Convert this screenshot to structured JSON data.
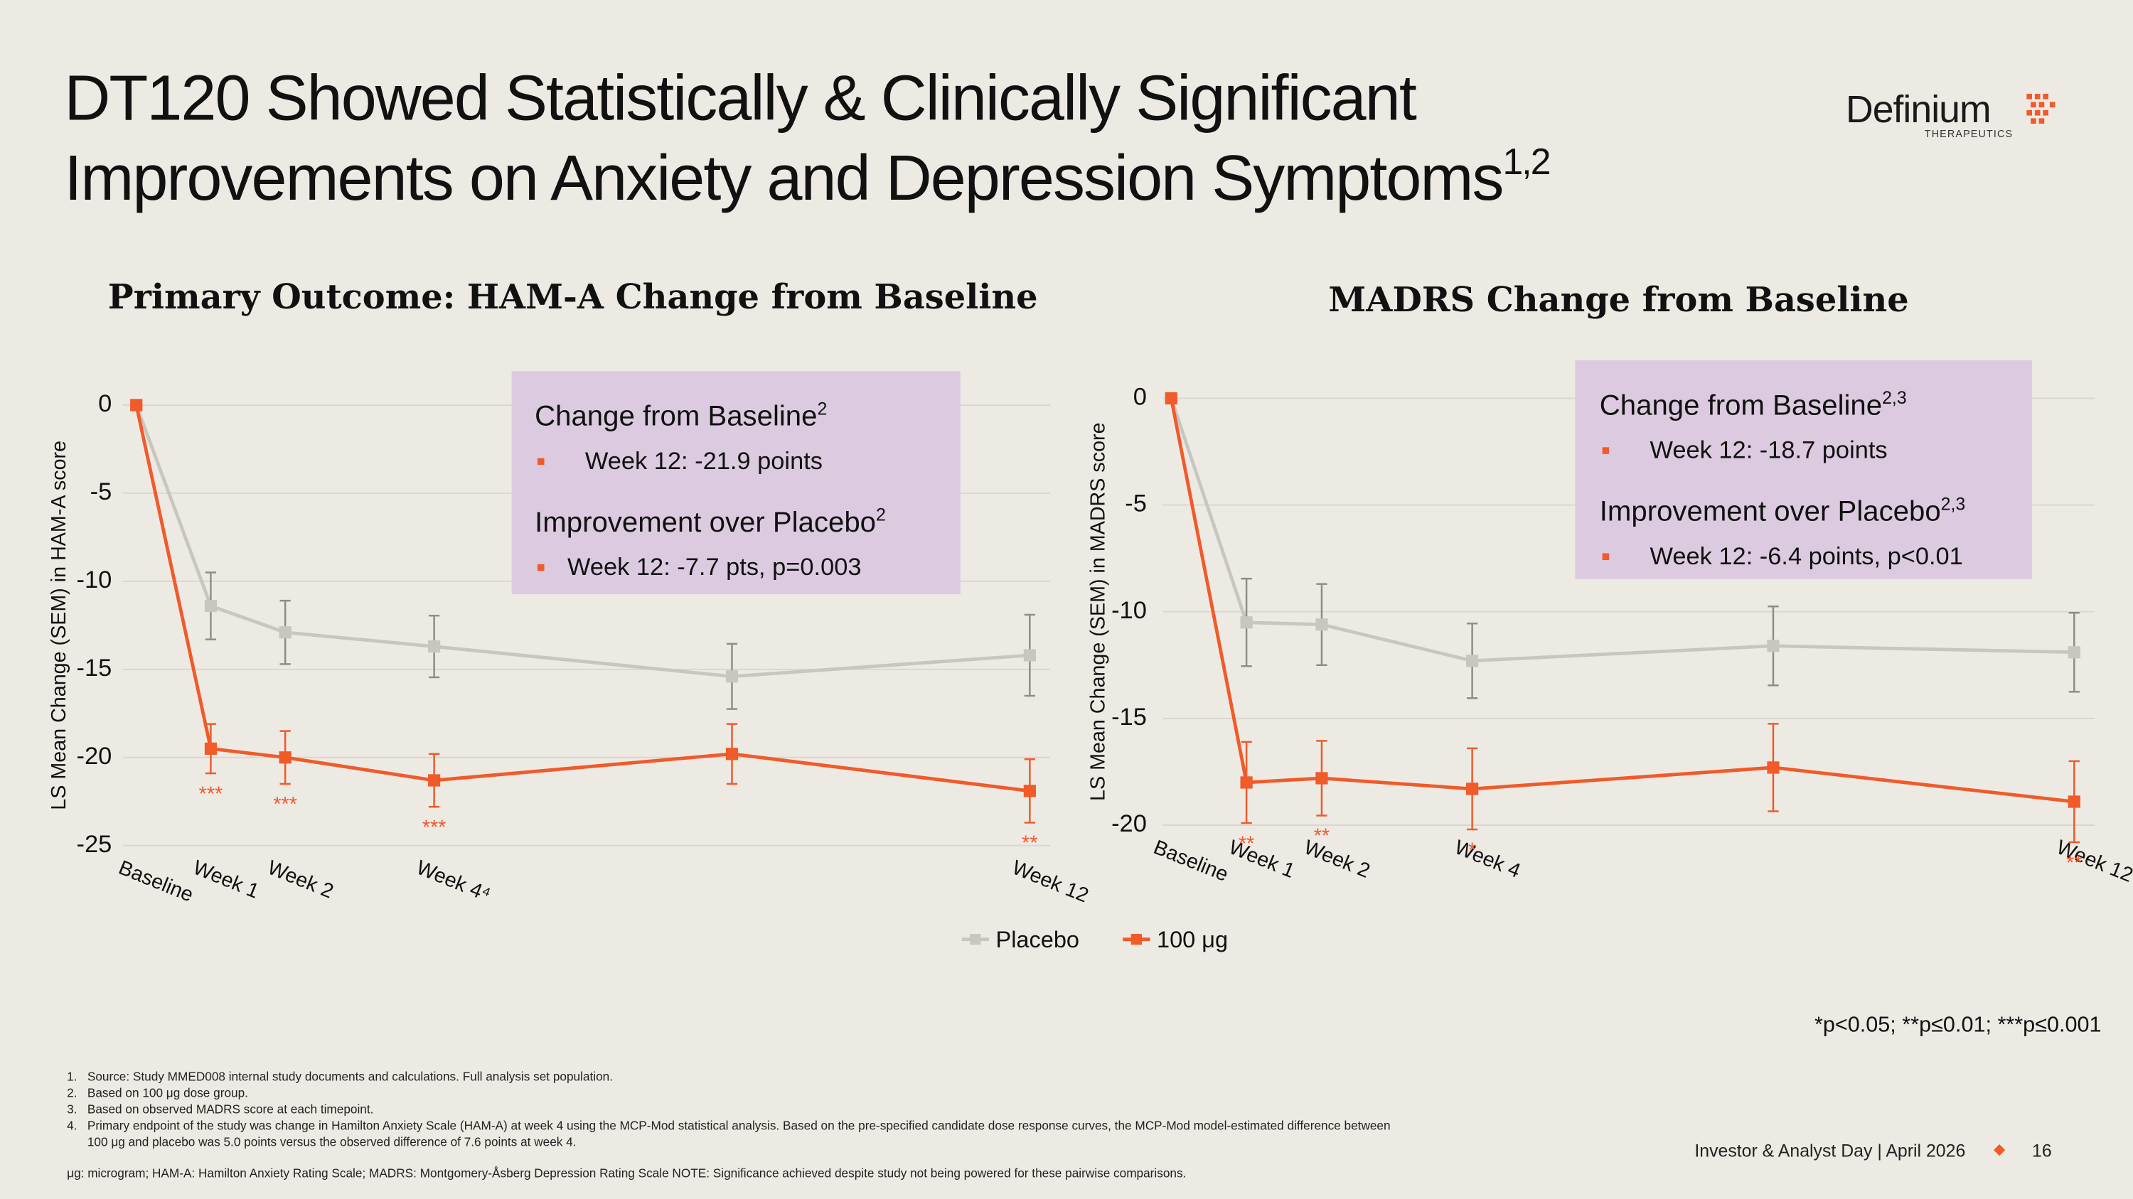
{
  "slide": {
    "title_lines": [
      "DT120 Showed Statistically & Clinically Significant",
      "Improvements on Anxiety and Depression Symptoms"
    ],
    "title_sup": "1,2",
    "logo": {
      "name": "Definium",
      "sub": "THERAPEUTICS"
    },
    "significance_note": "*p<0.05; **p≤0.01; ***p≤0.001",
    "footnotes": [
      {
        "number": "1.",
        "lines": [
          "Source: Study MMED008 internal study documents and calculations. Full analysis set population."
        ]
      },
      {
        "number": "2.",
        "lines": [
          "Based on 100 μg dose group."
        ]
      },
      {
        "number": "3.",
        "lines": [
          "Based on observed MADRS score at each timepoint."
        ]
      },
      {
        "number": "4.",
        "lines": [
          "Primary endpoint of the study was change in Hamilton Anxiety Scale (HAM-A) at week 4 using the MCP-Mod statistical analysis.  Based on the pre-specified candidate dose response curves, the MCP-Mod model-estimated difference between",
          "100 μg and placebo was 5.0 points versus the observed difference of 7.6 points at week 4."
        ]
      }
    ],
    "abbreviations": "μg: microgram; HAM-A: Hamilton Anxiety Rating Scale; MADRS: Montgomery-Åsberg Depression Rating Scale NOTE: Significance achieved despite study not being powered for these pairwise comparisons.",
    "footer": "Investor & Analyst Day | April 2026",
    "page": "16"
  },
  "chart_data": [
    {
      "type": "line",
      "title": "Primary Outcome: HAM-A Change from Baseline",
      "y_label": "LS Mean Change (SEM) in HAM-A score",
      "x": [
        0,
        1,
        2,
        4,
        8,
        12
      ],
      "xlim": [
        0,
        12
      ],
      "xticks": [
        {
          "value": 0,
          "label": "Baseline"
        },
        {
          "value": 1,
          "label": "Week 1"
        },
        {
          "value": 2,
          "label": "Week 2"
        },
        {
          "value": 4,
          "label": "Week 4⁴"
        },
        {
          "value": 12,
          "label": "Week 12"
        }
      ],
      "ylim": [
        -25,
        0
      ],
      "yticks": [
        0,
        -5,
        -10,
        -15,
        -20,
        -25
      ],
      "grid": true,
      "series": [
        {
          "name": "Placebo",
          "color": "#c9c6c0",
          "error_color": "#8f8c88",
          "values": [
            0,
            -11.4,
            -12.9,
            -13.7,
            -15.4,
            -14.2
          ],
          "errors": [
            null,
            1.9,
            1.8,
            1.75,
            1.85,
            2.3
          ]
        },
        {
          "name": "100 μg",
          "color": "#f15a29",
          "error_color": "#f15a29",
          "values": [
            0,
            -19.5,
            -20.0,
            -21.3,
            -19.8,
            -21.9
          ],
          "errors": [
            null,
            1.4,
            1.5,
            1.5,
            1.7,
            1.8
          ],
          "significance": [
            null,
            "***",
            "***",
            "***",
            null,
            "**"
          ]
        }
      ],
      "callout": [
        {
          "heading": "Change from Baseline",
          "sup": "2",
          "bullet": "Week 12: -21.9 points"
        },
        {
          "heading": "Improvement over Placebo",
          "sup": "2",
          "bullet": "Week 12: -7.7 pts, p=0.003"
        }
      ]
    },
    {
      "type": "line",
      "title": "MADRS Change from Baseline",
      "y_label": "LS Mean Change (SEM) in MADRS score",
      "x": [
        0,
        1,
        2,
        4,
        8,
        12
      ],
      "xlim": [
        0,
        12
      ],
      "xticks": [
        {
          "value": 0,
          "label": "Baseline"
        },
        {
          "value": 1,
          "label": "Week 1"
        },
        {
          "value": 2,
          "label": "Week 2"
        },
        {
          "value": 4,
          "label": "Week 4"
        },
        {
          "value": 12,
          "label": "Week 12"
        }
      ],
      "ylim": [
        -20,
        0
      ],
      "yticks": [
        0,
        -5,
        -10,
        -15,
        -20
      ],
      "grid": true,
      "series": [
        {
          "color": "#c9c6c0",
          "error_color": "#8f8c88",
          "values": [
            0,
            -10.5,
            -10.6,
            -12.3,
            -11.6,
            -11.9
          ],
          "errors": [
            null,
            2.05,
            1.9,
            1.75,
            1.85,
            1.85
          ]
        },
        {
          "color": "#f15a29",
          "error_color": "#f15a29",
          "values": [
            0,
            -18.0,
            -17.8,
            -18.3,
            -17.3,
            -18.9
          ],
          "errors": [
            null,
            1.9,
            1.75,
            1.9,
            2.05,
            1.9
          ],
          "significance": [
            null,
            "**",
            "**",
            "*",
            null,
            "**"
          ]
        }
      ],
      "callout": [
        {
          "heading": "Change from Baseline",
          "sup": "2,3",
          "bullet": "Week 12: -18.7 points"
        },
        {
          "heading": "Improvement over Placebo",
          "sup": "2,3",
          "bullet": "Week 12: -6.4 points, p<0.01"
        }
      ]
    }
  ]
}
